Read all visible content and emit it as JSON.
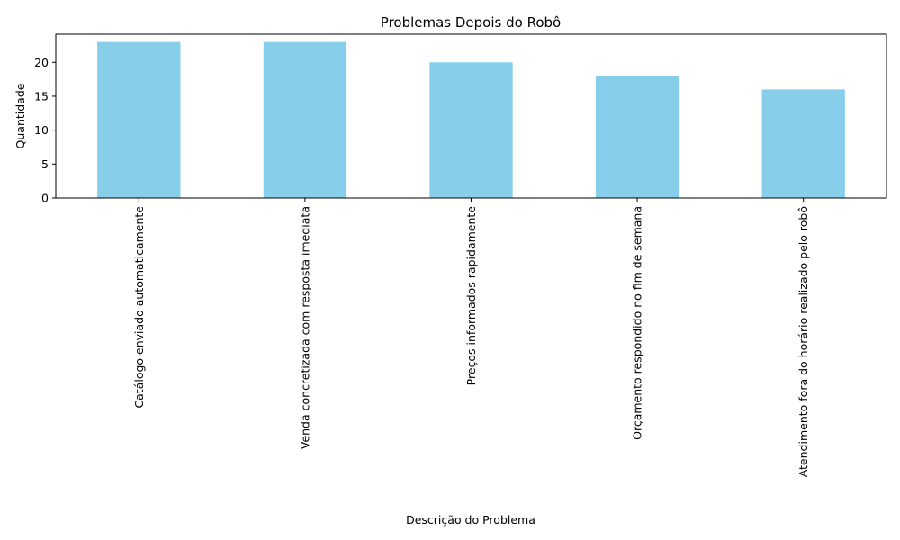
{
  "chart_data": {
    "type": "bar",
    "title": "Problemas Depois do Robô",
    "xlabel": "Descrição do Problema",
    "ylabel": "Quantidade",
    "categories": [
      "Catálogo enviado automaticamente",
      "Venda concretizada com resposta imediata",
      "Preços informados rapidamente",
      "Orçamento respondido no fim de semana",
      "Atendimento fora do horário realizado pelo robô"
    ],
    "values": [
      23,
      23,
      20,
      18,
      16
    ],
    "ylim": [
      0,
      24.15
    ],
    "yticks": [
      0,
      5,
      10,
      15,
      20
    ],
    "grid": false,
    "legend": "none",
    "bar_color": "#87CEEB",
    "x_tick_rotation": 90
  }
}
